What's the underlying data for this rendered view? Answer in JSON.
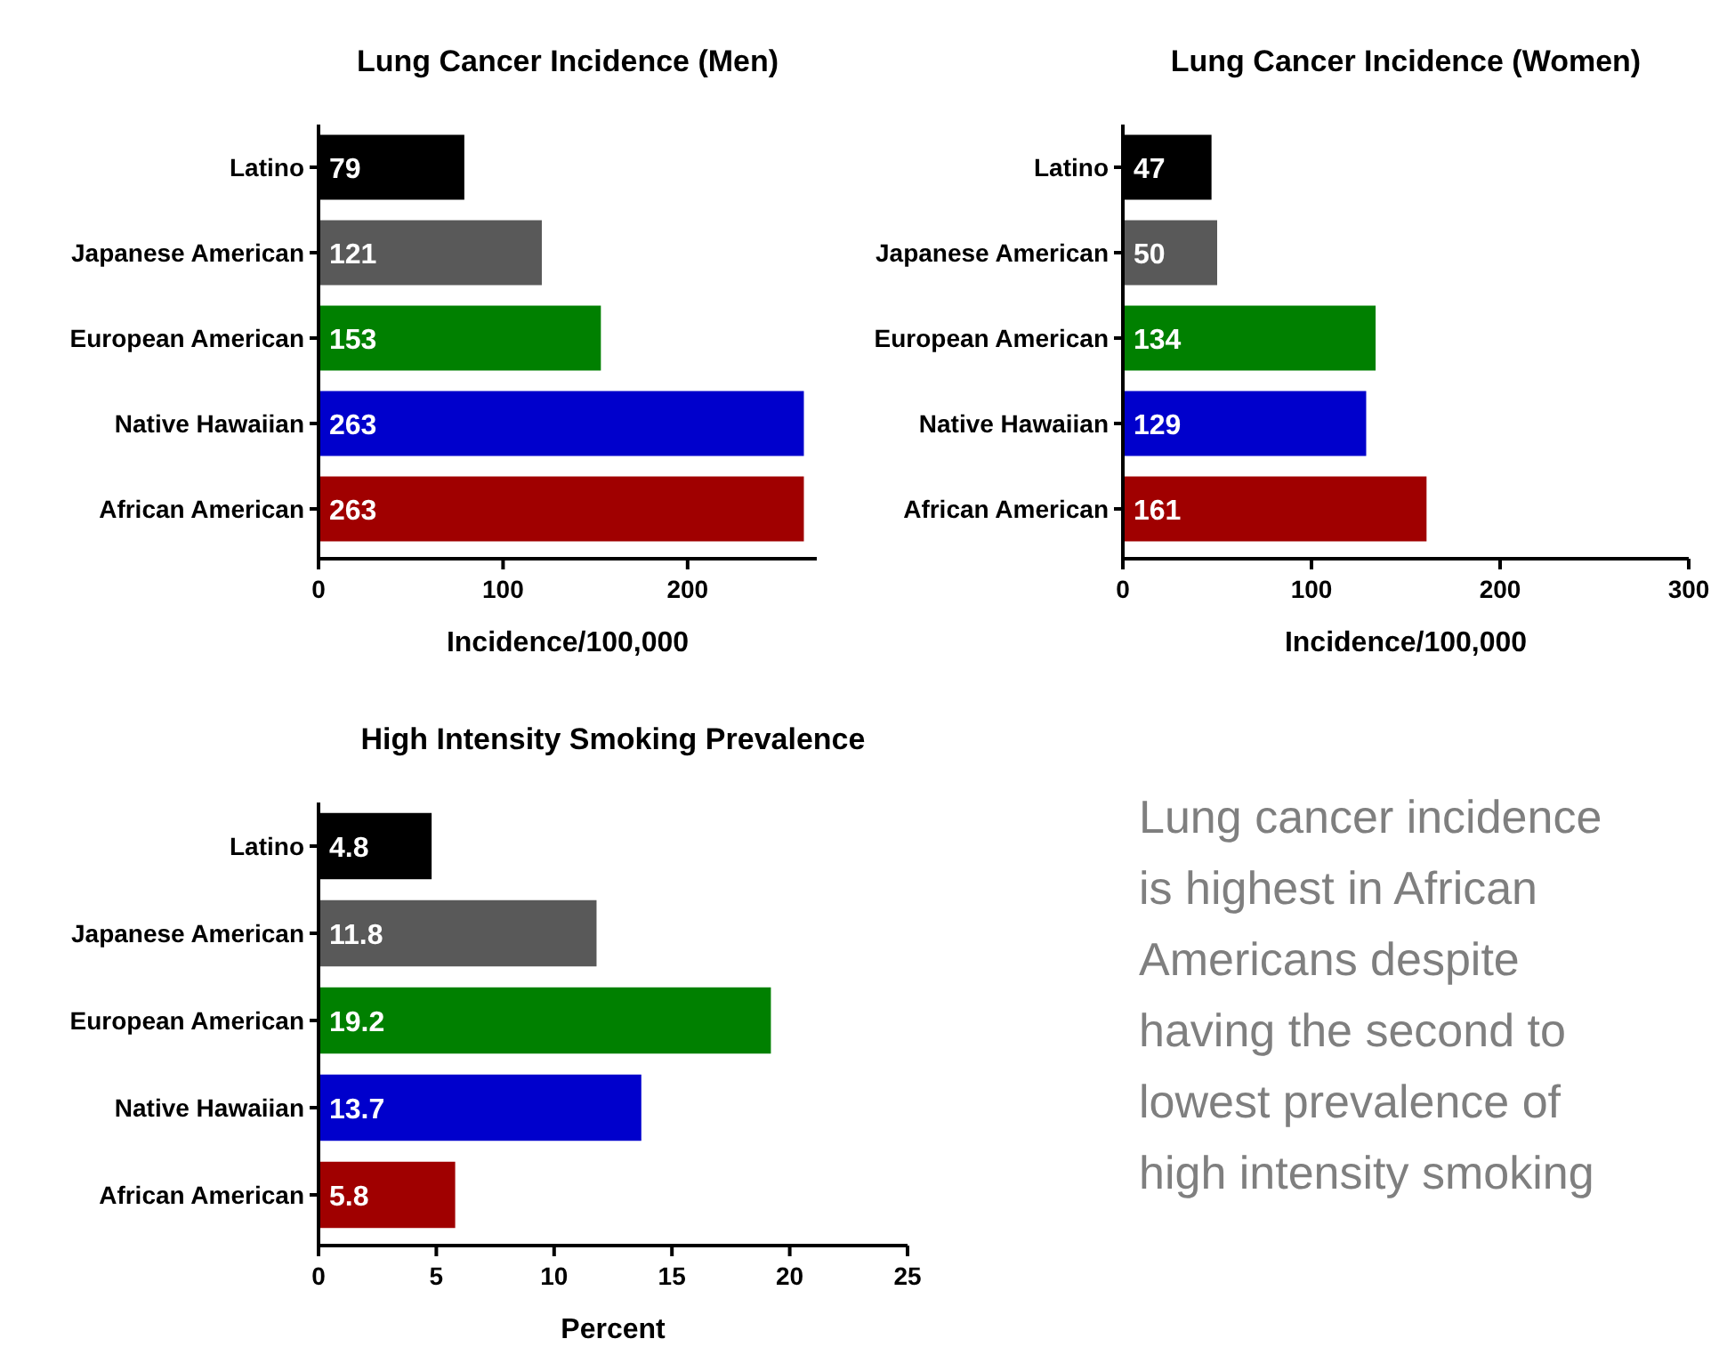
{
  "chart_data": [
    {
      "type": "bar",
      "orientation": "horizontal",
      "title": "Lung Cancer Incidence (Men)",
      "xlabel": "Incidence/100,000",
      "categories": [
        "Latino",
        "Japanese American",
        "European American",
        "Native Hawaiian",
        "African American"
      ],
      "values": [
        79,
        121,
        153,
        263,
        263
      ],
      "colors": [
        "#000000",
        "#595959",
        "#008000",
        "#0000cc",
        "#a00000"
      ],
      "xlim": [
        0,
        270
      ],
      "xticks": [
        0,
        100,
        200
      ],
      "data_labels": true
    },
    {
      "type": "bar",
      "orientation": "horizontal",
      "title": "Lung Cancer Incidence (Women)",
      "xlabel": "Incidence/100,000",
      "categories": [
        "Latino",
        "Japanese American",
        "European American",
        "Native Hawaiian",
        "African American"
      ],
      "values": [
        47,
        50,
        134,
        129,
        161
      ],
      "colors": [
        "#000000",
        "#595959",
        "#008000",
        "#0000cc",
        "#a00000"
      ],
      "xlim": [
        0,
        300
      ],
      "xticks": [
        0,
        100,
        200,
        300
      ],
      "data_labels": true
    },
    {
      "type": "bar",
      "orientation": "horizontal",
      "title": "High Intensity Smoking Prevalence",
      "xlabel": "Percent",
      "categories": [
        "Latino",
        "Japanese American",
        "European American",
        "Native Hawaiian",
        "African American"
      ],
      "values": [
        4.8,
        11.8,
        19.2,
        13.7,
        5.8
      ],
      "colors": [
        "#000000",
        "#595959",
        "#008000",
        "#0000cc",
        "#a00000"
      ],
      "xlim": [
        0,
        25
      ],
      "xticks": [
        0,
        5,
        10,
        15,
        20,
        25
      ],
      "data_labels": true
    },
    {
      "type": "other",
      "annotations": [
        "Lung cancer incidence is highest in African Americans despite having the second to lowest prevalence of high intensity smoking"
      ]
    }
  ]
}
